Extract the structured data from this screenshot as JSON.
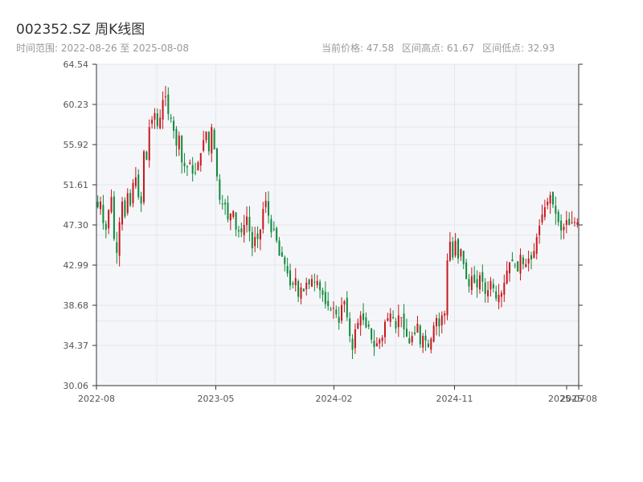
{
  "header": {
    "title": "002352.SZ 周K线图",
    "range_text": "时间范围: 2022-08-26 至 2025-08-08",
    "stats": [
      "当前价格: 47.58",
      "区间高点: 61.67",
      "区间低点: 32.93"
    ]
  },
  "colors": {
    "up": "#c8161d",
    "down": "#0e8a3a",
    "plot_bg": "#f5f6f9",
    "grid": "#e4e6ea",
    "axis": "#333333"
  },
  "chart_data": {
    "type": "candlestick",
    "title": "002352.SZ 周K线图",
    "xlabel": "",
    "ylabel": "",
    "ylim": [
      30.06,
      64.54
    ],
    "y_ticks": [
      "30.06",
      "34.37",
      "38.68",
      "42.99",
      "47.30",
      "51.61",
      "55.92",
      "60.23",
      "64.54"
    ],
    "x_ticks": [
      "2022-08",
      "2023-05",
      "2024-02",
      "2024-11",
      "2025-07",
      "2025-08"
    ],
    "grid": true,
    "series_close": [
      49.2,
      49.8,
      47.5,
      46.8,
      48.9,
      50.3,
      45.8,
      44.3,
      47.6,
      49.8,
      48.2,
      50.7,
      49.4,
      51.8,
      52.4,
      50.3,
      49.6,
      55.2,
      54.3,
      57.8,
      58.6,
      59.3,
      57.9,
      58.8,
      60.7,
      61.1,
      59.2,
      58.7,
      57.4,
      55.8,
      56.9,
      54.0,
      53.6,
      53.5,
      54.0,
      52.8,
      52.9,
      54.0,
      55.0,
      56.4,
      57.3,
      55.2,
      57.8,
      55.4,
      52.5,
      50.0,
      49.5,
      49.5,
      47.9,
      48.5,
      48.8,
      46.8,
      46.6,
      46.5,
      47.3,
      48.2,
      46.6,
      44.8,
      46.0,
      45.8,
      46.8,
      49.0,
      49.9,
      48.3,
      46.5,
      46.8,
      45.6,
      44.0,
      43.9,
      43.1,
      42.1,
      40.8,
      40.9,
      41.6,
      39.6,
      40.6,
      40.2,
      41.1,
      40.9,
      41.5,
      41.2,
      41.3,
      40.3,
      39.8,
      38.8,
      38.6,
      38.2,
      38.4,
      37.7,
      36.8,
      38.7,
      39.1,
      37.4,
      35.4,
      33.9,
      36.1,
      36.8,
      37.6,
      37.1,
      36.3,
      36.4,
      35.0,
      34.2,
      34.6,
      35.0,
      35.2,
      36.9,
      37.3,
      37.8,
      37.3,
      36.2,
      37.6,
      37.4,
      36.1,
      35.3,
      34.6,
      35.4,
      35.6,
      36.7,
      34.5,
      35.4,
      34.9,
      34.2,
      35.1,
      36.5,
      37.3,
      36.4,
      37.6,
      37.8,
      43.5,
      45.5,
      43.8,
      45.6,
      43.7,
      44.7,
      43.1,
      41.5,
      40.7,
      41.8,
      41.1,
      40.6,
      41.9,
      41.2,
      39.9,
      40.3,
      41.3,
      40.5,
      39.4,
      39.8,
      40.0,
      41.1,
      42.4,
      43.3,
      43.4,
      43.0,
      42.3,
      44.1,
      43.1,
      43.1,
      43.7,
      43.6,
      44.5,
      46.0,
      47.2,
      48.4,
      49.2,
      49.8,
      50.5,
      49.5,
      48.5,
      47.6,
      46.7,
      47.1,
      47.8,
      47.3,
      47.6,
      47.6,
      47.58
    ]
  }
}
